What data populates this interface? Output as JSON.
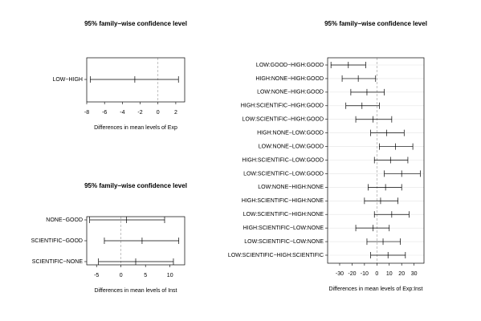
{
  "chart_data": [
    {
      "type": "interval",
      "title": "95% family−wise confidence level",
      "xlabel": "Differences in mean levels of Exp",
      "categories": [
        "LOW−HIGH"
      ],
      "diff": [
        -2.6
      ],
      "lwr": [
        -7.6
      ],
      "upr": [
        2.3
      ],
      "xlim": [
        -8,
        3
      ],
      "xticks": [
        -8,
        -6,
        -4,
        -2,
        0,
        2
      ],
      "grid": false
    },
    {
      "type": "interval",
      "title": "95% family−wise confidence level",
      "xlabel": "Differences in mean levels of Inst",
      "categories": [
        "NONE−GOOD",
        "SCIENTIFIC−GOOD",
        "SCIENTIFIC−NONE"
      ],
      "diff": [
        1.1,
        4.3,
        3.0
      ],
      "lwr": [
        -6.4,
        -3.4,
        -4.6
      ],
      "upr": [
        8.9,
        11.8,
        10.7
      ],
      "xlim": [
        -7,
        13
      ],
      "xticks": [
        -5,
        0,
        5,
        10
      ],
      "grid": false
    },
    {
      "type": "interval",
      "title": "95% family−wise confidence level",
      "xlabel": "Differences in mean levels of Exp:Inst",
      "categories": [
        "LOW:GOOD−HIGH:GOOD",
        "HIGH:NONE−HIGH:GOOD",
        "LOW:NONE−HIGH:GOOD",
        "HIGH:SCIENTIFIC−HIGH:GOOD",
        "LOW:SCIENTIFIC−HIGH:GOOD",
        "HIGH:NONE−LOW:GOOD",
        "LOW:NONE−LOW:GOOD",
        "HIGH:SCIENTIFIC−LOW:GOOD",
        "LOW:SCIENTIFIC−LOW:GOOD",
        "LOW:NONE−HIGH:NONE",
        "HIGH:SCIENTIFIC−HIGH:NONE",
        "LOW:SCIENTIFIC−HIGH:NONE",
        "HIGH:SCIENTIFIC−LOW:NONE",
        "LOW:SCIENTIFIC−LOW:NONE",
        "LOW:SCIENTIFIC−HIGH:SCIENTIFIC"
      ],
      "diff": [
        -23,
        -15,
        -8,
        -12,
        -3,
        8,
        15,
        11,
        20,
        7,
        3,
        12,
        -3,
        5,
        9
      ],
      "lwr": [
        -37,
        -28,
        -21,
        -25,
        -17,
        -5,
        2,
        -2,
        6,
        -7,
        -10,
        -2,
        -17,
        -8,
        -5
      ],
      "upr": [
        -9,
        -1,
        6,
        2,
        12,
        22,
        29,
        25,
        35,
        20,
        17,
        26,
        10,
        19,
        23
      ],
      "xlim": [
        -39.7,
        38
      ],
      "xticks": [
        -30,
        -20,
        -10,
        0,
        10,
        20,
        30
      ],
      "grid": true
    }
  ]
}
